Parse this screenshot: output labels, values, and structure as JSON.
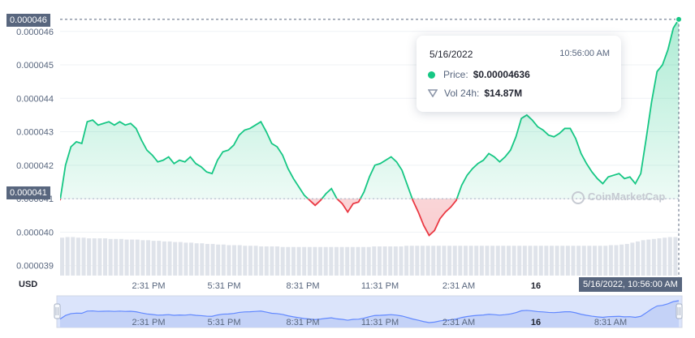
{
  "colors": {
    "up": "#16c784",
    "down": "#ea3943",
    "label_bg": "#58667e",
    "nav_fill": "#dbe4fb",
    "nav_line": "#6188ff"
  },
  "currency_label": "USD",
  "watermark": "CoinMarketCap",
  "price_tags": {
    "current": "0.000046",
    "reference": "0.000041"
  },
  "crosshair_label": "5/16/2022, 10:56:00 AM",
  "tooltip": {
    "date": "5/16/2022",
    "time": "10:56:00 AM",
    "price_label": "Price:",
    "price_value": "$0.00004636",
    "vol_label": "Vol 24h:",
    "vol_value": "$14.87M"
  },
  "chart_data": {
    "type": "area",
    "title": "",
    "xlabel": "",
    "ylabel": "USD",
    "ylim": [
      3.87e-05,
      4.66e-05
    ],
    "baseline": 4.1e-05,
    "yticks": [
      "0.000039",
      "0.000040",
      "0.000041",
      "0.000042",
      "0.000043",
      "0.000044",
      "0.000045",
      "0.000046"
    ],
    "xticks": [
      "2:31 PM",
      "5:31 PM",
      "8:31 PM",
      "11:31 PM",
      "2:31 AM",
      "16",
      "8:31 AM"
    ],
    "series": [
      {
        "values": [
          4.095e-05,
          4.2e-05,
          4.255e-05,
          4.27e-05,
          4.265e-05,
          4.33e-05,
          4.335e-05,
          4.32e-05,
          4.325e-05,
          4.33e-05,
          4.32e-05,
          4.33e-05,
          4.32e-05,
          4.325e-05,
          4.31e-05,
          4.275e-05,
          4.245e-05,
          4.23e-05,
          4.21e-05,
          4.215e-05,
          4.225e-05,
          4.205e-05,
          4.215e-05,
          4.21e-05,
          4.225e-05,
          4.205e-05,
          4.195e-05,
          4.18e-05,
          4.175e-05,
          4.215e-05,
          4.24e-05,
          4.245e-05,
          4.26e-05,
          4.29e-05,
          4.305e-05,
          4.31e-05,
          4.32e-05,
          4.33e-05,
          4.3e-05,
          4.265e-05,
          4.255e-05,
          4.23e-05,
          4.19e-05,
          4.16e-05,
          4.135e-05,
          4.11e-05,
          4.095e-05,
          4.08e-05,
          4.095e-05,
          4.115e-05,
          4.13e-05,
          4.1e-05,
          4.085e-05,
          4.06e-05,
          4.085e-05,
          4.09e-05,
          4.12e-05,
          4.165e-05,
          4.2e-05,
          4.205e-05,
          4.215e-05,
          4.225e-05,
          4.21e-05,
          4.185e-05,
          4.14e-05,
          4.095e-05,
          4.06e-05,
          4.02e-05,
          3.99e-05,
          4.005e-05,
          4.04e-05,
          4.06e-05,
          4.075e-05,
          4.095e-05,
          4.14e-05,
          4.17e-05,
          4.19e-05,
          4.205e-05,
          4.215e-05,
          4.235e-05,
          4.225e-05,
          4.21e-05,
          4.225e-05,
          4.245e-05,
          4.285e-05,
          4.34e-05,
          4.35e-05,
          4.335e-05,
          4.315e-05,
          4.305e-05,
          4.29e-05,
          4.285e-05,
          4.295e-05,
          4.31e-05,
          4.31e-05,
          4.28e-05,
          4.235e-05,
          4.205e-05,
          4.18e-05,
          4.16e-05,
          4.145e-05,
          4.165e-05,
          4.17e-05,
          4.175e-05,
          4.16e-05,
          4.165e-05,
          4.145e-05,
          4.175e-05,
          4.28e-05,
          4.39e-05,
          4.48e-05,
          4.5e-05,
          4.545e-05,
          4.61e-05,
          4.636e-05
        ]
      }
    ],
    "volume": [
      0.61,
      0.62,
      0.62,
      0.61,
      0.61,
      0.6,
      0.6,
      0.6,
      0.6,
      0.59,
      0.59,
      0.59,
      0.58,
      0.58,
      0.58,
      0.57,
      0.57,
      0.56,
      0.56,
      0.55,
      0.55,
      0.54,
      0.54,
      0.53,
      0.53,
      0.52,
      0.52,
      0.51,
      0.51,
      0.5,
      0.5,
      0.49,
      0.49,
      0.49,
      0.48,
      0.48,
      0.48,
      0.47,
      0.47,
      0.47,
      0.47,
      0.46,
      0.46,
      0.46,
      0.46,
      0.46,
      0.46,
      0.46,
      0.46,
      0.46,
      0.46,
      0.46,
      0.46,
      0.46,
      0.46,
      0.46,
      0.46,
      0.46,
      0.47,
      0.47,
      0.47,
      0.47,
      0.47,
      0.47,
      0.48,
      0.48,
      0.48,
      0.48,
      0.48,
      0.48,
      0.48,
      0.48,
      0.48,
      0.48,
      0.48,
      0.48,
      0.48,
      0.48,
      0.48,
      0.48,
      0.48,
      0.48,
      0.48,
      0.48,
      0.48,
      0.48,
      0.48,
      0.48,
      0.48,
      0.48,
      0.48,
      0.48,
      0.48,
      0.48,
      0.48,
      0.48,
      0.48,
      0.48,
      0.48,
      0.48,
      0.48,
      0.48,
      0.49,
      0.49,
      0.5,
      0.51,
      0.53,
      0.55,
      0.57,
      0.58,
      0.59,
      0.6,
      0.61,
      0.62,
      0.62
    ],
    "grid": true,
    "legend": "none"
  }
}
